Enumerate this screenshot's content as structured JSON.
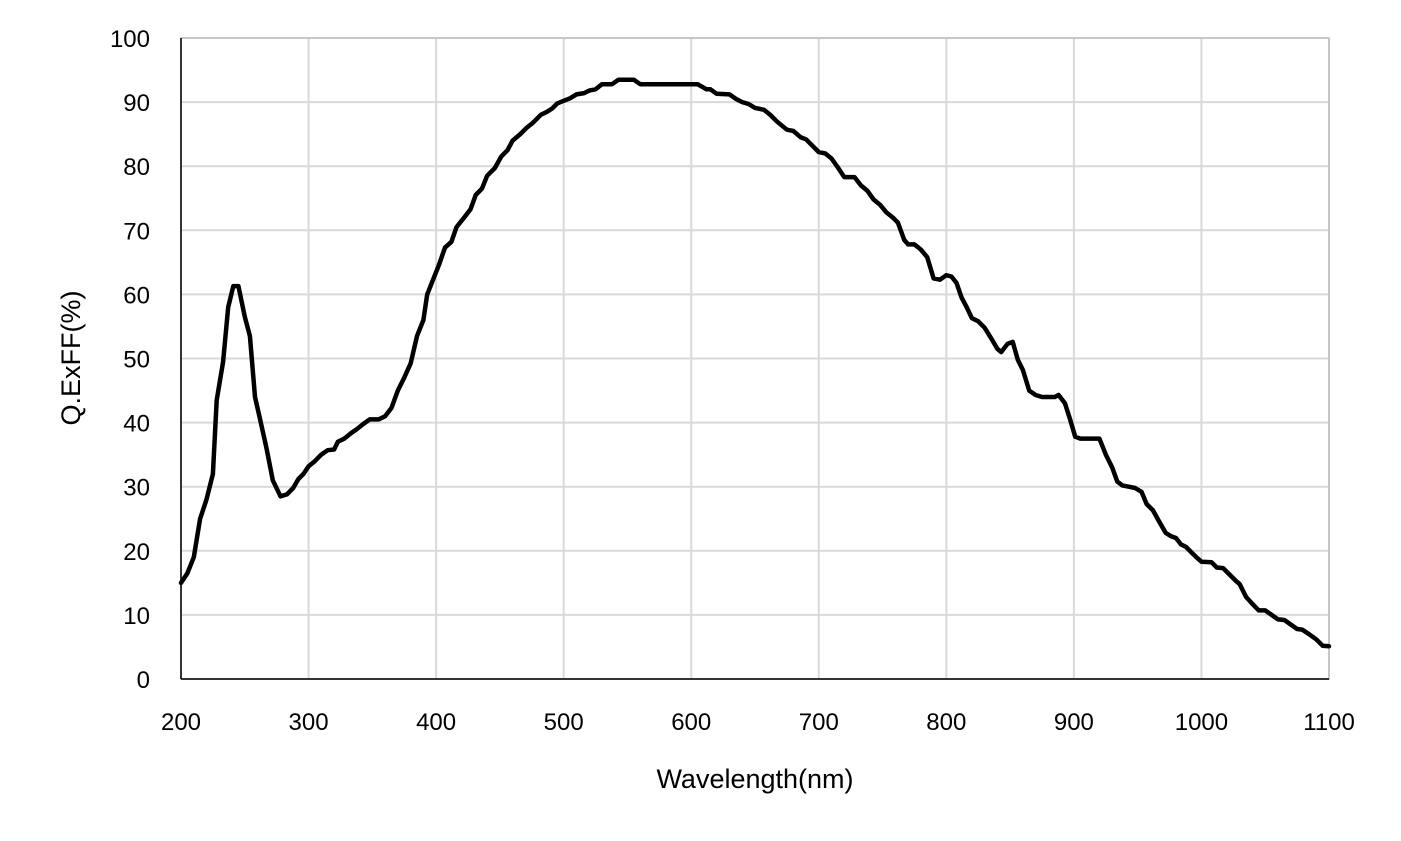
{
  "chart_data": {
    "type": "line",
    "title": "",
    "xlabel": "Wavelength(nm)",
    "ylabel": "Q.ExFF(%)",
    "xlim": [
      200,
      1100
    ],
    "ylim": [
      0,
      100
    ],
    "xticks": [
      200,
      300,
      400,
      500,
      600,
      700,
      800,
      900,
      1000,
      1100
    ],
    "yticks": [
      0,
      10,
      20,
      30,
      40,
      50,
      60,
      70,
      80,
      90,
      100
    ],
    "grid": true,
    "line_color": "#000000",
    "grid_color": "#d9d9d9",
    "series": [
      {
        "name": "Q.ExFF",
        "x": [
          200,
          205,
          210,
          215,
          220,
          225,
          228,
          233,
          237,
          241,
          245,
          250,
          254,
          258,
          262,
          267,
          272,
          278,
          283,
          288,
          292,
          296,
          300,
          305,
          310,
          315,
          320,
          323,
          328,
          333,
          338,
          343,
          348,
          355,
          360,
          365,
          370,
          375,
          380,
          385,
          390,
          393,
          397,
          402,
          407,
          412,
          416,
          422,
          427,
          431,
          436,
          440,
          446,
          451,
          456,
          460,
          466,
          471,
          476,
          482,
          487,
          491,
          495,
          500,
          505,
          510,
          516,
          520,
          525,
          530,
          538,
          543,
          555,
          560,
          605,
          612,
          615,
          620,
          630,
          635,
          640,
          645,
          650,
          657,
          662,
          667,
          675,
          680,
          686,
          690,
          695,
          700,
          705,
          710,
          715,
          720,
          728,
          733,
          738,
          743,
          748,
          753,
          758,
          762,
          767,
          770,
          775,
          780,
          785,
          790,
          795,
          800,
          804,
          808,
          812,
          816,
          820,
          825,
          830,
          835,
          840,
          843,
          848,
          852,
          856,
          860,
          865,
          870,
          875,
          880,
          885,
          888,
          893,
          897,
          901,
          905,
          920,
          925,
          930,
          934,
          938,
          943,
          948,
          953,
          957,
          962,
          967,
          972,
          976,
          980,
          984,
          988,
          992,
          996,
          1000,
          1008,
          1012,
          1017,
          1022,
          1027,
          1030,
          1035,
          1040,
          1045,
          1050,
          1055,
          1060,
          1065,
          1070,
          1075,
          1079,
          1085,
          1090,
          1095,
          1100
        ],
        "y": [
          15,
          16.5,
          19,
          25,
          28,
          32,
          43.5,
          49.5,
          58,
          61.3,
          61.3,
          56.5,
          53.5,
          44,
          40.5,
          36,
          31,
          28.5,
          28.8,
          29.8,
          31.2,
          32,
          33.2,
          34,
          35,
          35.7,
          35.8,
          37,
          37.5,
          38.3,
          39,
          39.8,
          40.5,
          40.5,
          41,
          42.3,
          45,
          47,
          49.2,
          53.5,
          56,
          60,
          62,
          64.5,
          67.3,
          68.2,
          70.5,
          72,
          73.3,
          75.5,
          76.5,
          78.5,
          79.7,
          81.5,
          82.5,
          84,
          85,
          86,
          86.8,
          88,
          88.5,
          89,
          89.8,
          90.2,
          90.6,
          91.2,
          91.4,
          91.8,
          92,
          92.8,
          92.8,
          93.5,
          93.5,
          92.8,
          92.8,
          92,
          92,
          91.3,
          91.2,
          90.5,
          90,
          89.7,
          89.1,
          88.8,
          88,
          87,
          85.7,
          85.5,
          84.5,
          84.2,
          83.2,
          82.2,
          82,
          81.2,
          79.8,
          78.3,
          78.3,
          77,
          76.2,
          74.8,
          74,
          72.8,
          72,
          71.2,
          68.5,
          67.8,
          67.8,
          67,
          65.8,
          62.5,
          62.3,
          63,
          62.8,
          61.8,
          59.5,
          58,
          56.3,
          55.8,
          54.8,
          53.2,
          51.5,
          51,
          52.3,
          52.6,
          49.8,
          48.2,
          45,
          44.3,
          44,
          44,
          44,
          44.3,
          43,
          40.5,
          37.8,
          37.5,
          37.5,
          35,
          33,
          30.8,
          30.2,
          30,
          29.8,
          29.2,
          27.3,
          26.3,
          24.5,
          22.8,
          22.3,
          22,
          21,
          20.6,
          19.8,
          19,
          18.3,
          18.2,
          17.4,
          17.3,
          16.3,
          15.3,
          14.8,
          12.8,
          11.7,
          10.7,
          10.7,
          10,
          9.3,
          9.2,
          8.5,
          7.8,
          7.7,
          6.9,
          6.2,
          5.2,
          5.1
        ]
      }
    ]
  }
}
